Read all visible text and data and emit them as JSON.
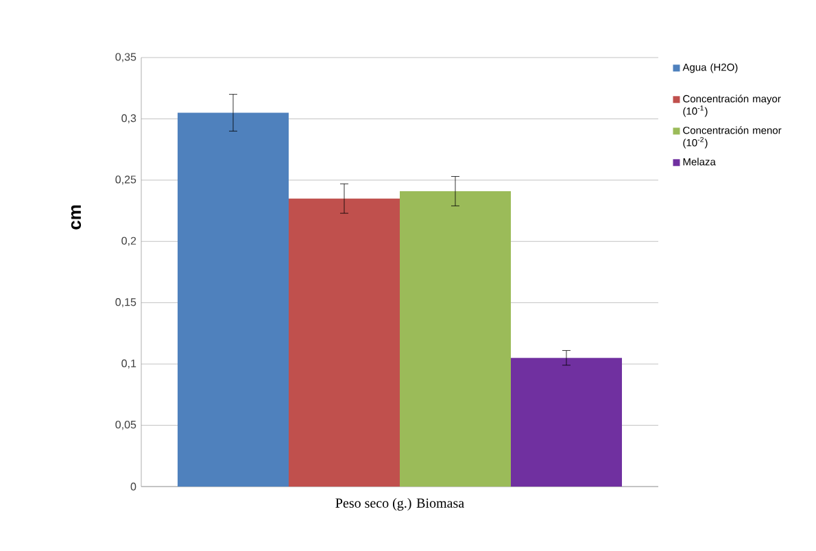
{
  "chart_data": {
    "type": "bar",
    "xlabel": "Peso seco (g.) Biomasa",
    "ylabel": "cm",
    "categories": [
      null
    ],
    "series": [
      {
        "name": "Agua (H2O)",
        "color": "#4f81bd",
        "values": [
          0.305
        ],
        "errors": [
          0.015
        ]
      },
      {
        "name": "Concentración mayor (10$^{-1}$)",
        "color": "#c0504d",
        "values": [
          0.235
        ],
        "errors": [
          0.012
        ]
      },
      {
        "name": "Concentración menor (10$^{-2}$)",
        "color": "#9bbb59",
        "values": [
          0.241
        ],
        "errors": [
          0.012
        ]
      },
      {
        "name": "Melaza",
        "color": "#7030a0",
        "values": [
          0.105
        ],
        "errors": [
          0.006
        ]
      }
    ],
    "ylim": [
      0,
      0.35
    ],
    "yticks": [
      0,
      {
        "value": 0.05,
        "label": "0,05"
      },
      {
        "value": 0.1,
        "label": "0,1"
      },
      {
        "value": 0.15,
        "label": "0,15"
      },
      {
        "value": 0.2,
        "label": "0,2"
      },
      {
        "value": 0.25,
        "label": "0,25"
      },
      {
        "value": 0.3,
        "label": "0,3"
      },
      {
        "value": 0.35,
        "label": "0,35"
      }
    ],
    "grid": "y",
    "legend": "right"
  }
}
